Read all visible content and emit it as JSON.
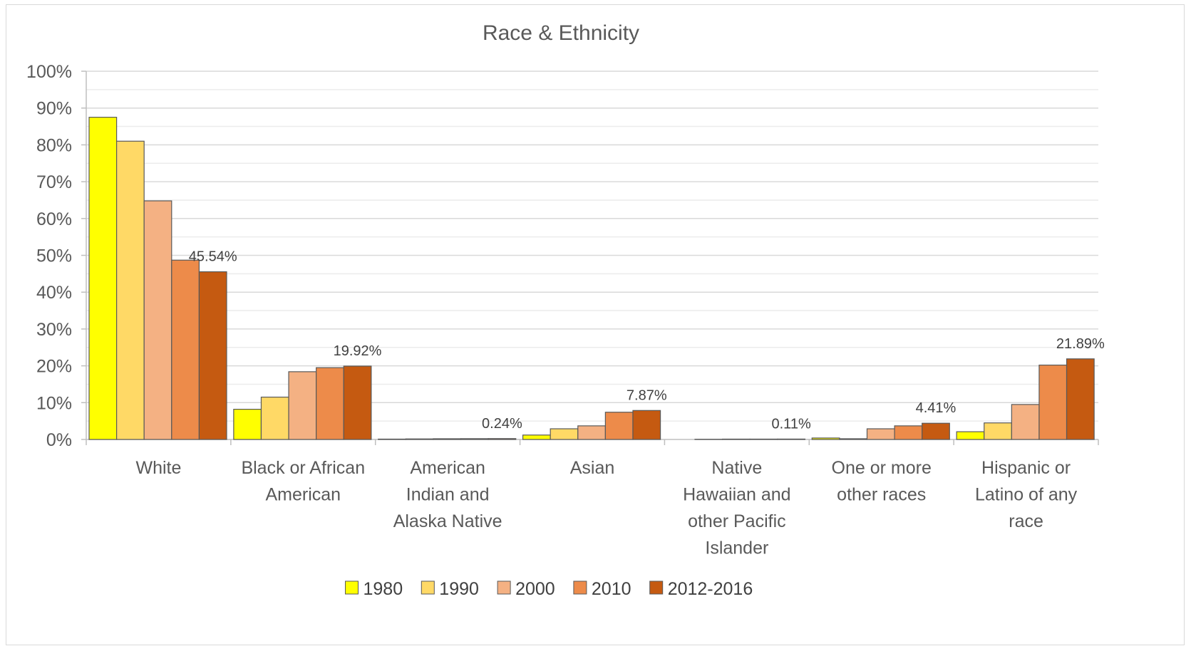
{
  "chart_data": {
    "type": "bar",
    "title": "Race & Ethnicity",
    "xlabel": "",
    "ylabel": "",
    "ylim": [
      0,
      100
    ],
    "ytick_step": 10,
    "yticks": [
      "0%",
      "10%",
      "20%",
      "30%",
      "40%",
      "50%",
      "60%",
      "70%",
      "80%",
      "90%",
      "100%"
    ],
    "grid": true,
    "minor_grid": true,
    "legend_position": "bottom",
    "categories": [
      [
        "White"
      ],
      [
        "Black or African",
        "American"
      ],
      [
        "American",
        "Indian and",
        "Alaska Native"
      ],
      [
        "Asian"
      ],
      [
        "Native",
        "Hawaiian and",
        "other Pacific",
        "Islander"
      ],
      [
        "One or more",
        "other races"
      ],
      [
        "Hispanic or",
        "Latino of any",
        "race"
      ]
    ],
    "series": [
      {
        "name": "1980",
        "color": "#FFFF00",
        "values": [
          87.5,
          8.2,
          0.1,
          1.2,
          0.0,
          0.4,
          2.1
        ]
      },
      {
        "name": "1990",
        "color": "#FFD966",
        "values": [
          81.0,
          11.5,
          0.15,
          2.9,
          0.05,
          0.2,
          4.5
        ]
      },
      {
        "name": "2000",
        "color": "#F4B183",
        "values": [
          64.8,
          18.4,
          0.2,
          3.7,
          0.1,
          2.9,
          9.5
        ]
      },
      {
        "name": "2010",
        "color": "#ED8B4A",
        "values": [
          48.7,
          19.5,
          0.22,
          7.4,
          0.1,
          3.7,
          20.2
        ]
      },
      {
        "name": "2012-2016",
        "color": "#C55A11",
        "values": [
          45.54,
          19.92,
          0.24,
          7.87,
          0.11,
          4.41,
          21.89
        ]
      }
    ],
    "data_labels": [
      {
        "category_index": 0,
        "series_index": 4,
        "text": "45.54%"
      },
      {
        "category_index": 1,
        "series_index": 4,
        "text": "19.92%"
      },
      {
        "category_index": 2,
        "series_index": 4,
        "text": "0.24%"
      },
      {
        "category_index": 3,
        "series_index": 4,
        "text": "7.87%"
      },
      {
        "category_index": 4,
        "series_index": 4,
        "text": "0.11%"
      },
      {
        "category_index": 5,
        "series_index": 4,
        "text": "4.41%"
      },
      {
        "category_index": 6,
        "series_index": 4,
        "text": "21.89%"
      }
    ]
  }
}
